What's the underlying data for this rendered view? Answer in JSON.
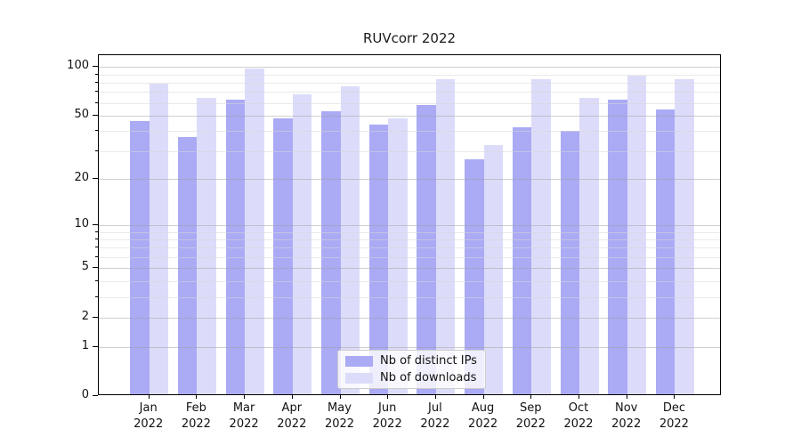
{
  "chart_data": {
    "type": "bar",
    "title": "RUVcorr 2022",
    "year_label": "2022",
    "categories": [
      "Jan",
      "Feb",
      "Mar",
      "Apr",
      "May",
      "Jun",
      "Jul",
      "Aug",
      "Sep",
      "Oct",
      "Nov",
      "Dec"
    ],
    "series": [
      {
        "name": "Nb of distinct IPs",
        "color": "#aaaaf5",
        "values": [
          45,
          36,
          61,
          47,
          52,
          43,
          57,
          26,
          41,
          39,
          61,
          53
        ]
      },
      {
        "name": "Nb of downloads",
        "color": "#dcdcfa",
        "values": [
          77,
          63,
          95,
          66,
          74,
          47,
          82,
          32,
          82,
          63,
          86,
          82
        ]
      }
    ],
    "yscale": "log1p",
    "ylim": [
      0,
      118
    ],
    "y_major_ticks": [
      100,
      50,
      20,
      10,
      5,
      2,
      1,
      0
    ],
    "y_minor_ticks": [
      90,
      80,
      70,
      60,
      40,
      30,
      9,
      8,
      7,
      6,
      4,
      3
    ],
    "grid": true,
    "legend_position": "lower center",
    "grid_major_color": "#a0a0a0",
    "grid_minor_color": "#d7d7d7",
    "axis_color": "#000000",
    "background_color": "#ffffff"
  }
}
